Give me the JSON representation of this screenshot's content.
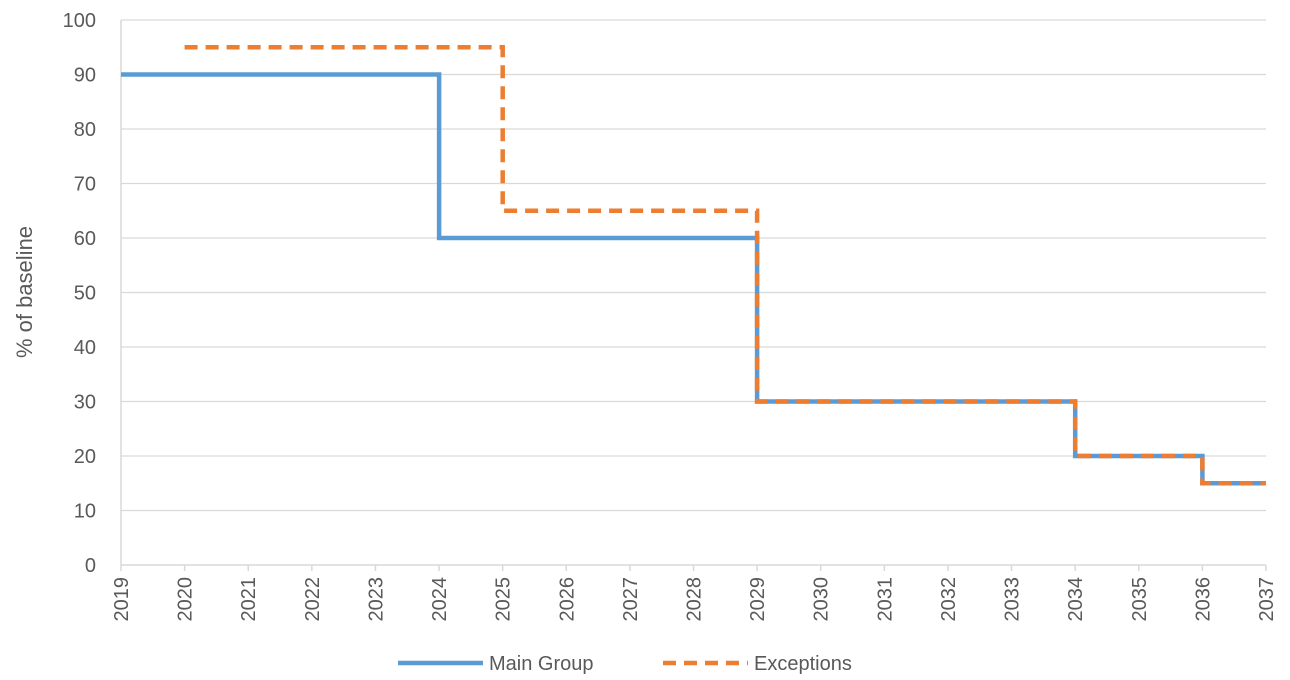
{
  "chart_data": {
    "type": "line",
    "step": true,
    "title": "",
    "xlabel": "",
    "ylabel": "% of baseline",
    "xlim": [
      2019,
      2037
    ],
    "ylim": [
      0,
      100
    ],
    "x_ticks": [
      "2019",
      "2020",
      "2021",
      "2022",
      "2023",
      "2024",
      "2025",
      "2026",
      "2027",
      "2028",
      "2029",
      "2030",
      "2031",
      "2032",
      "2033",
      "2034",
      "2035",
      "2036",
      "2037"
    ],
    "y_ticks": [
      0,
      10,
      20,
      30,
      40,
      50,
      60,
      70,
      80,
      90,
      100
    ],
    "grid": true,
    "legend_position": "bottom",
    "series": [
      {
        "name": "Main Group",
        "color": "#5b9bd5",
        "style": "solid",
        "points": [
          [
            2019,
            90
          ],
          [
            2024,
            90
          ],
          [
            2024,
            60
          ],
          [
            2029,
            60
          ],
          [
            2029,
            30
          ],
          [
            2034,
            30
          ],
          [
            2034,
            20
          ],
          [
            2036,
            20
          ],
          [
            2036,
            15
          ],
          [
            2037,
            15
          ]
        ]
      },
      {
        "name": "Exceptions",
        "color": "#ed7d31",
        "style": "dashed",
        "points": [
          [
            2020,
            95
          ],
          [
            2025,
            95
          ],
          [
            2025,
            65
          ],
          [
            2029,
            65
          ],
          [
            2029,
            30
          ],
          [
            2034,
            30
          ],
          [
            2034,
            20
          ],
          [
            2036,
            20
          ],
          [
            2036,
            15
          ],
          [
            2037,
            15
          ]
        ]
      }
    ]
  }
}
